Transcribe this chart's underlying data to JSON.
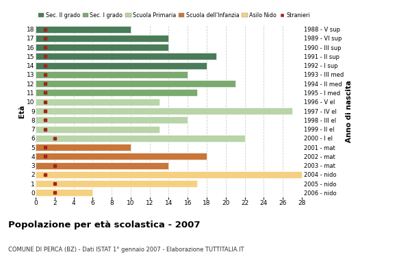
{
  "title": "Popolazione per età scolastica - 2007",
  "subtitle": "COMUNE DI PERCA (BZ) - Dati ISTAT 1° gennaio 2007 - Elaborazione TUTTITALIA.IT",
  "ylabel": "Età",
  "xlabel_right": "Anno di nascita",
  "xlim": [
    0,
    28
  ],
  "xticks": [
    0,
    2,
    4,
    6,
    8,
    10,
    12,
    14,
    16,
    18,
    20,
    22,
    24,
    26,
    28
  ],
  "ages": [
    18,
    17,
    16,
    15,
    14,
    13,
    12,
    11,
    10,
    9,
    8,
    7,
    6,
    5,
    4,
    3,
    2,
    1,
    0
  ],
  "years": [
    "1988 - V sup",
    "1989 - VI sup",
    "1990 - III sup",
    "1991 - II sup",
    "1992 - I sup",
    "1993 - III med",
    "1994 - II med",
    "1995 - I med",
    "1996 - V el",
    "1997 - IV el",
    "1998 - III el",
    "1999 - II el",
    "2000 - I el",
    "2001 - mat",
    "2002 - mat",
    "2003 - mat",
    "2004 - nido",
    "2005 - nido",
    "2006 - nido"
  ],
  "values": [
    10,
    14,
    14,
    19,
    18,
    16,
    21,
    17,
    13,
    27,
    16,
    13,
    22,
    10,
    18,
    14,
    28,
    17,
    6
  ],
  "stranieri": [
    1,
    1,
    1,
    1,
    1,
    1,
    1,
    1,
    1,
    1,
    1,
    1,
    2,
    1,
    1,
    2,
    1,
    2,
    2
  ],
  "bar_colors": [
    "#4a7c59",
    "#4a7c59",
    "#4a7c59",
    "#4a7c59",
    "#4a7c59",
    "#7aaa6e",
    "#7aaa6e",
    "#7aaa6e",
    "#b8d4a8",
    "#b8d4a8",
    "#b8d4a8",
    "#b8d4a8",
    "#b8d4a8",
    "#c8763a",
    "#c8763a",
    "#c8763a",
    "#f5d080",
    "#f5d080",
    "#f5d080"
  ],
  "legend_labels": [
    "Sec. II grado",
    "Sec. I grado",
    "Scuola Primaria",
    "Scuola dell'Infanzia",
    "Asilo Nido",
    "Stranieri"
  ],
  "legend_colors": [
    "#4a7c59",
    "#7aaa6e",
    "#b8d4a8",
    "#c8763a",
    "#f5d080",
    "#a0251a"
  ],
  "stranieri_color": "#a0251a",
  "bg_color": "#ffffff",
  "grid_color": "#cccccc"
}
